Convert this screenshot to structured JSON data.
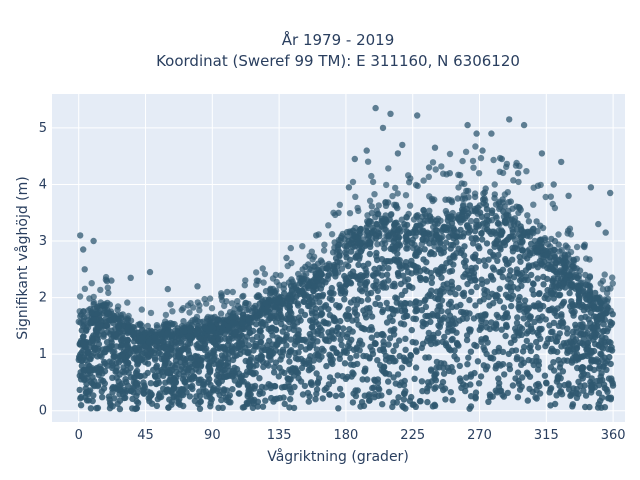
{
  "chart_data": {
    "type": "scatter",
    "title": "År 1979 - 2019",
    "subtitle": "Koordinat (Sweref 99 TM): E 311160, N 6306120",
    "xlabel": "Vågriktning (grader)",
    "ylabel": "Signifikant våghöjd (m)",
    "xlim": [
      -18,
      368
    ],
    "ylim": [
      -0.2,
      5.6
    ],
    "x_ticks": [
      0,
      45,
      90,
      135,
      180,
      225,
      270,
      315,
      360
    ],
    "y_ticks": [
      0,
      1,
      2,
      3,
      4,
      5
    ],
    "grid": true,
    "marker_color": "#2f5870",
    "envelope": {
      "x": [
        0,
        15,
        30,
        45,
        60,
        75,
        90,
        105,
        120,
        135,
        150,
        165,
        180,
        195,
        210,
        225,
        240,
        255,
        270,
        285,
        300,
        315,
        330,
        345,
        360
      ],
      "y": [
        1.6,
        1.9,
        1.6,
        1.4,
        1.45,
        1.5,
        1.55,
        1.7,
        1.9,
        2.1,
        2.35,
        2.6,
        3.0,
        3.4,
        3.5,
        3.3,
        3.4,
        3.6,
        3.75,
        3.6,
        3.3,
        3.0,
        2.7,
        2.2,
        1.8
      ]
    },
    "outliers": [
      {
        "x": 1,
        "y": 3.1
      },
      {
        "x": 3,
        "y": 2.85
      },
      {
        "x": 10,
        "y": 3.0
      },
      {
        "x": 4,
        "y": 2.5
      },
      {
        "x": 35,
        "y": 2.35
      },
      {
        "x": 48,
        "y": 2.45
      },
      {
        "x": 80,
        "y": 2.2
      },
      {
        "x": 100,
        "y": 2.1
      },
      {
        "x": 200,
        "y": 5.35
      },
      {
        "x": 205,
        "y": 5.0
      },
      {
        "x": 210,
        "y": 5.25
      },
      {
        "x": 218,
        "y": 4.7
      },
      {
        "x": 228,
        "y": 5.22
      },
      {
        "x": 262,
        "y": 5.05
      },
      {
        "x": 268,
        "y": 4.9
      },
      {
        "x": 272,
        "y": 4.6
      },
      {
        "x": 278,
        "y": 4.9
      },
      {
        "x": 285,
        "y": 4.45
      },
      {
        "x": 290,
        "y": 5.15
      },
      {
        "x": 300,
        "y": 5.05
      },
      {
        "x": 312,
        "y": 4.55
      },
      {
        "x": 325,
        "y": 4.4
      },
      {
        "x": 345,
        "y": 3.95
      },
      {
        "x": 358,
        "y": 3.85
      },
      {
        "x": 186,
        "y": 4.45
      },
      {
        "x": 194,
        "y": 4.6
      },
      {
        "x": 215,
        "y": 4.55
      },
      {
        "x": 240,
        "y": 4.65
      },
      {
        "x": 236,
        "y": 4.3
      },
      {
        "x": 250,
        "y": 4.2
      },
      {
        "x": 296,
        "y": 4.2
      },
      {
        "x": 320,
        "y": 4.0
      },
      {
        "x": 330,
        "y": 3.8
      },
      {
        "x": 350,
        "y": 3.3
      },
      {
        "x": 355,
        "y": 3.15
      },
      {
        "x": 22,
        "y": 2.3
      },
      {
        "x": 60,
        "y": 2.15
      },
      {
        "x": 120,
        "y": 2.3
      },
      {
        "x": 140,
        "y": 2.7
      },
      {
        "x": 160,
        "y": 3.1
      },
      {
        "x": 175,
        "y": 3.5
      },
      {
        "x": 182,
        "y": 3.95
      }
    ]
  }
}
